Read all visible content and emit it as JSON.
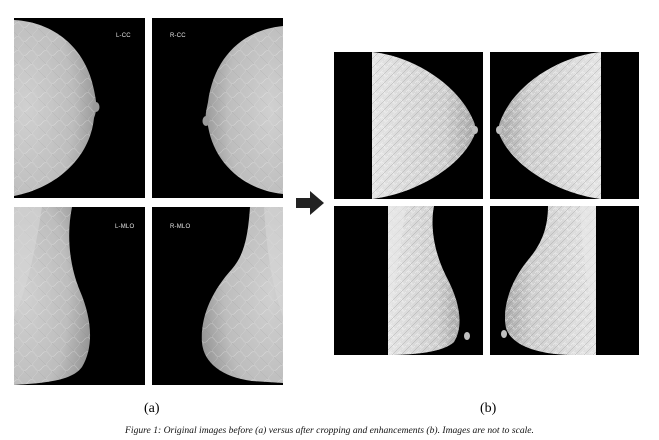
{
  "figure": {
    "group_a": {
      "label": "(a)",
      "views": [
        {
          "label": "L-CC"
        },
        {
          "label": "R-CC"
        },
        {
          "label": "L-MLO"
        },
        {
          "label": "R-MLO"
        }
      ]
    },
    "group_b": {
      "label": "(b)"
    },
    "caption": "Figure 1: Original images before (a) versus after cropping and enhancements (b). Images are not to scale.",
    "colors": {
      "background": "#ffffff",
      "image_background": "#000000",
      "tissue": "#bdbdbd",
      "arrow": "#222222"
    }
  }
}
